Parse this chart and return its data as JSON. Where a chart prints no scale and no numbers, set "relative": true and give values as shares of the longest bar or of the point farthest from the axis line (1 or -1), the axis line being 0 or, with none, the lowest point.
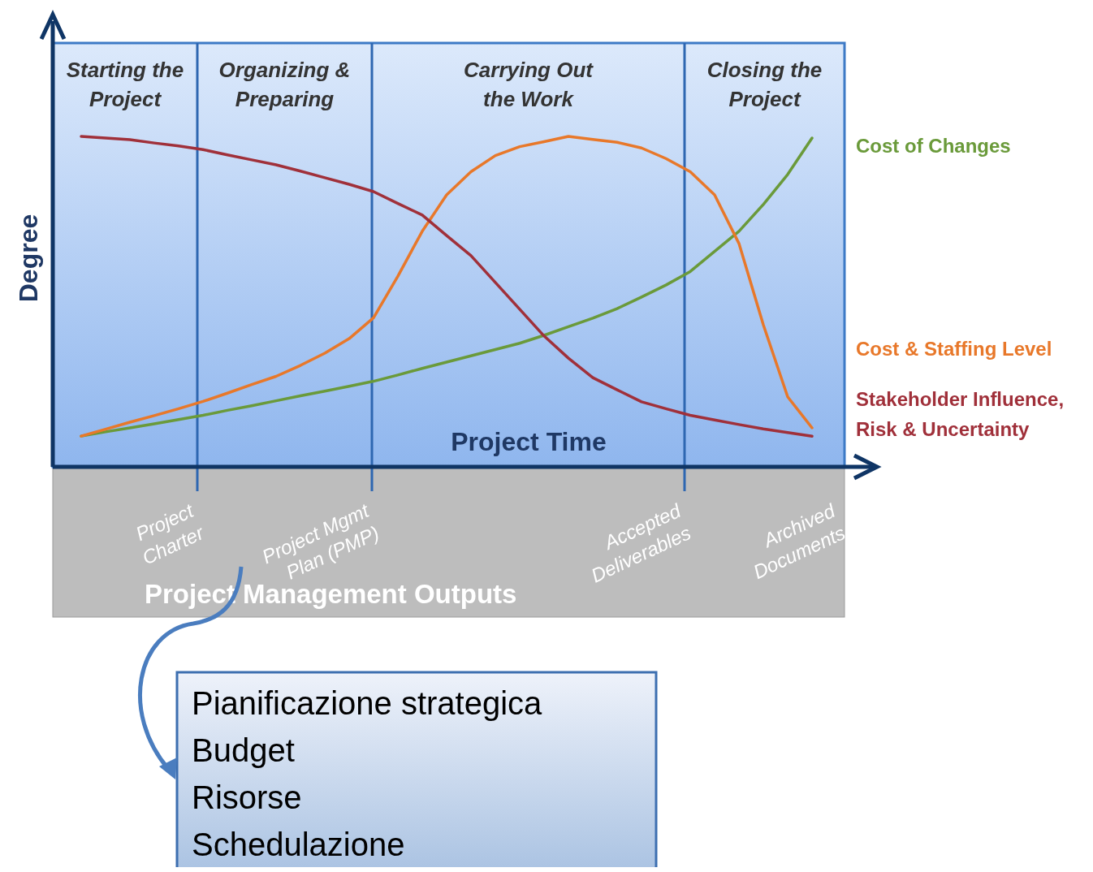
{
  "chart_data": {
    "type": "line",
    "relative": true,
    "xlabel": "Project Time",
    "ylabel": "Degree",
    "legend": false,
    "marker": "none",
    "line_style": "solid",
    "categories": [
      null,
      null,
      null,
      null,
      null,
      null,
      null,
      null,
      null,
      null,
      null,
      null,
      null,
      null,
      null,
      null,
      null,
      null,
      null,
      null,
      null,
      null,
      null,
      null,
      null,
      null,
      null,
      null,
      null,
      null,
      null
    ],
    "series": [
      {
        "name": "Cost of Changes",
        "color": "#6a9a3a",
        "values": [
          0.093,
          0.106,
          0.118,
          0.13,
          0.143,
          0.156,
          0.171,
          0.185,
          0.2,
          0.215,
          0.229,
          0.244,
          0.259,
          0.278,
          0.298,
          0.317,
          0.336,
          0.355,
          0.374,
          0.398,
          0.424,
          0.45,
          0.479,
          0.514,
          0.55,
          0.591,
          0.652,
          0.713,
          0.794,
          0.885,
          0.995
        ]
      },
      {
        "name": "Cost & Staffing Level",
        "color": "#e8782a",
        "values": [
          0.093,
          0.114,
          0.135,
          0.155,
          0.176,
          0.198,
          0.223,
          0.249,
          0.274,
          0.307,
          0.344,
          0.388,
          0.451,
          0.577,
          0.713,
          0.823,
          0.893,
          0.942,
          0.969,
          0.984,
          1.0,
          0.991,
          0.982,
          0.965,
          0.933,
          0.893,
          0.823,
          0.676,
          0.43,
          0.212,
          0.118
        ]
      },
      {
        "name": "Stakeholder Influence, Risk & Uncertainty",
        "color": "#a0303a",
        "values": [
          1.0,
          0.995,
          0.99,
          0.98,
          0.971,
          0.96,
          0.944,
          0.929,
          0.914,
          0.895,
          0.875,
          0.855,
          0.833,
          0.797,
          0.762,
          0.7,
          0.639,
          0.558,
          0.477,
          0.396,
          0.329,
          0.27,
          0.233,
          0.197,
          0.176,
          0.156,
          0.142,
          0.128,
          0.115,
          0.104,
          0.093
        ]
      }
    ],
    "annotations": [
      "Starting the Project",
      "Organizing & Preparing",
      "Carrying Out the Work",
      "Closing the Project",
      "Project Charter",
      "Project Mgmt Plan (PMP)",
      "Accepted Deliverables",
      "Archived Documents",
      "Project Management Outputs",
      "Pianificazione strategica",
      "Budget",
      "Risorse",
      "Schedulazione"
    ]
  }
}
